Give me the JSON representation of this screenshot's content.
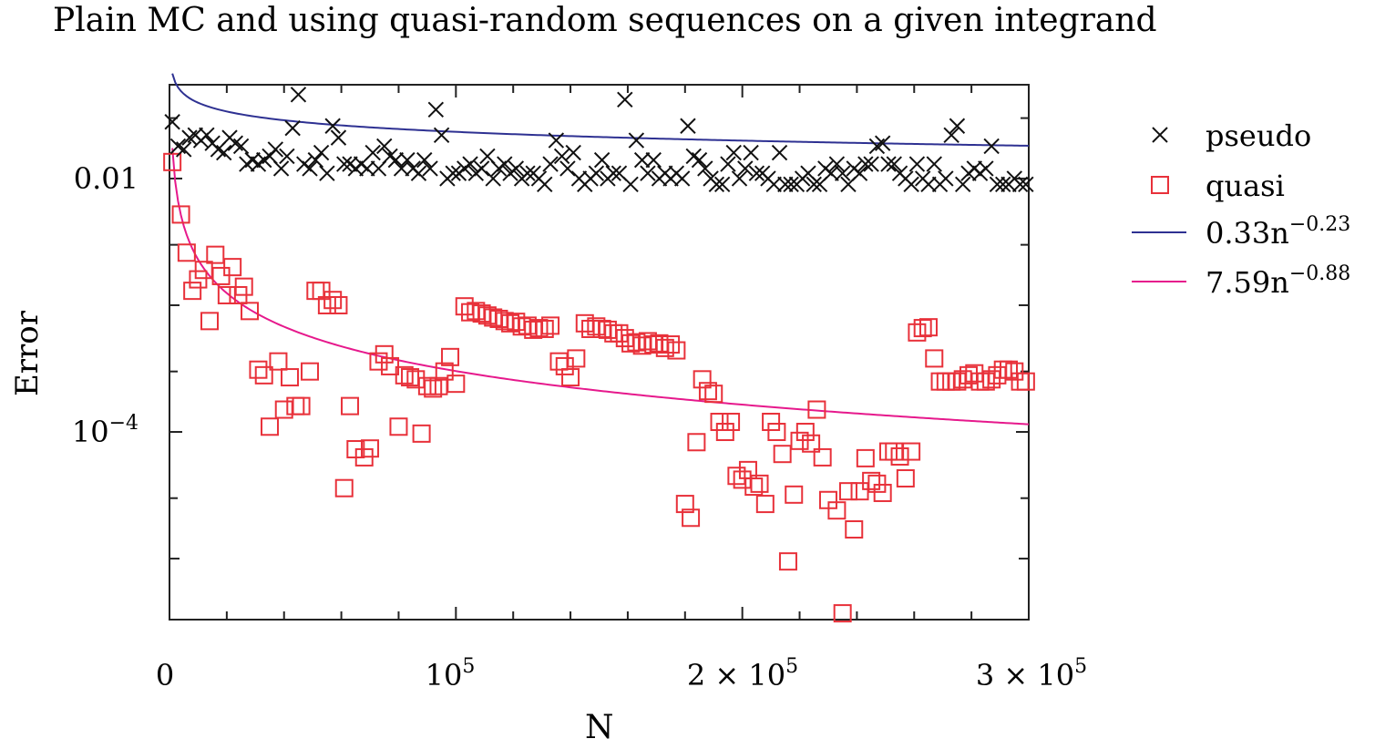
{
  "chart_data": {
    "type": "scatter",
    "title": "Plain MC and using quasi-random sequences on a given integrand",
    "xlabel": "N",
    "ylabel": "Error",
    "x_scale": "linear",
    "y_scale": "log",
    "xlim": [
      0,
      300000
    ],
    "ylim": [
      3.3e-06,
      0.055
    ],
    "x_ticks": [
      {
        "value": 0,
        "label": "0"
      },
      {
        "value": 100000,
        "label": "10^5"
      },
      {
        "value": 200000,
        "label": "2 × 10^5"
      },
      {
        "value": 300000,
        "label": "3 × 10^5"
      }
    ],
    "y_ticks": [
      {
        "value": 0.01,
        "label": "0.01"
      },
      {
        "value": 0.0001,
        "label": "10^−4"
      }
    ],
    "legend_position": "right",
    "legend": [
      {
        "label": "pseudo",
        "marker": "x",
        "color": "#111111"
      },
      {
        "label": "quasi",
        "marker": "square",
        "color": "#e8313a"
      },
      {
        "label": "0.33n^−0.23",
        "line": true,
        "color": "#2e3192"
      },
      {
        "label": "7.59n^−0.88",
        "line": true,
        "color": "#e6198c"
      }
    ],
    "series": [
      {
        "name": "pseudo",
        "marker": "x",
        "color": "#111111",
        "x": [
          1000,
          3000,
          5000,
          7000,
          9000,
          11000,
          13000,
          15000,
          17000,
          19000,
          21000,
          23000,
          25000,
          27000,
          29000,
          31000,
          33000,
          35000,
          37000,
          39000,
          41000,
          43000,
          45000,
          47000,
          49000,
          51000,
          53000,
          55000,
          57000,
          59000,
          61000,
          63000,
          65000,
          67000,
          69000,
          71000,
          73000,
          75000,
          77000,
          79000,
          81000,
          83000,
          85000,
          87000,
          89000,
          91000,
          93000,
          95000,
          97000,
          99000,
          101000,
          103000,
          105000,
          107000,
          109000,
          111000,
          113000,
          115000,
          117000,
          119000,
          121000,
          123000,
          125000,
          127000,
          129000,
          131000,
          133000,
          135000,
          137000,
          139000,
          141000,
          143000,
          145000,
          147000,
          149000,
          151000,
          153000,
          155000,
          157000,
          159000,
          161000,
          163000,
          165000,
          167000,
          169000,
          171000,
          173000,
          175000,
          177000,
          179000,
          181000,
          183000,
          185000,
          187000,
          189000,
          191000,
          193000,
          195000,
          197000,
          199000,
          201000,
          203000,
          205000,
          207000,
          209000,
          211000,
          213000,
          215000,
          217000,
          219000,
          221000,
          223000,
          225000,
          227000,
          229000,
          231000,
          233000,
          235000,
          237000,
          239000,
          241000,
          243000,
          245000,
          247000,
          249000,
          251000,
          253000,
          255000,
          257000,
          259000,
          261000,
          263000,
          265000,
          267000,
          269000,
          271000,
          273000,
          275000,
          277000,
          279000,
          281000,
          283000,
          285000,
          287000,
          289000,
          291000,
          293000,
          295000,
          297000,
          299000
        ],
        "y": [
          0.028,
          0.018,
          0.017,
          0.021,
          0.022,
          0.02,
          0.022,
          0.019,
          0.017,
          0.016,
          0.021,
          0.019,
          0.018,
          0.013,
          0.014,
          0.013,
          0.014,
          0.015,
          0.017,
          0.012,
          0.015,
          0.025,
          0.046,
          0.013,
          0.012,
          0.014,
          0.016,
          0.011,
          0.026,
          0.021,
          0.013,
          0.013,
          0.012,
          0.013,
          0.012,
          0.016,
          0.012,
          0.018,
          0.015,
          0.014,
          0.012,
          0.014,
          0.012,
          0.011,
          0.014,
          0.012,
          0.035,
          0.022,
          0.01,
          0.011,
          0.011,
          0.012,
          0.013,
          0.011,
          0.012,
          0.015,
          0.01,
          0.012,
          0.013,
          0.011,
          0.012,
          0.01,
          0.011,
          0.011,
          0.01,
          0.009,
          0.013,
          0.02,
          0.015,
          0.012,
          0.016,
          0.01,
          0.009,
          0.01,
          0.011,
          0.014,
          0.01,
          0.011,
          0.011,
          0.042,
          0.009,
          0.02,
          0.014,
          0.011,
          0.014,
          0.01,
          0.011,
          0.01,
          0.011,
          0.01,
          0.026,
          0.015,
          0.014,
          0.012,
          0.01,
          0.009,
          0.009,
          0.013,
          0.016,
          0.01,
          0.012,
          0.016,
          0.011,
          0.011,
          0.01,
          0.009,
          0.016,
          0.009,
          0.009,
          0.009,
          0.01,
          0.011,
          0.009,
          0.009,
          0.012,
          0.011,
          0.013,
          0.011,
          0.009,
          0.012,
          0.011,
          0.013,
          0.013,
          0.018,
          0.019,
          0.013,
          0.013,
          0.011,
          0.01,
          0.009,
          0.013,
          0.01,
          0.009,
          0.013,
          0.009,
          0.01,
          0.022,
          0.026,
          0.009,
          0.011,
          0.012,
          0.011,
          0.012,
          0.018,
          0.009,
          0.009,
          0.009,
          0.01,
          0.009,
          0.009
        ]
      },
      {
        "name": "quasi",
        "marker": "square",
        "color": "#e8313a",
        "x": [
          1000,
          4000,
          6000,
          8000,
          10000,
          12000,
          14000,
          16000,
          18000,
          20000,
          22000,
          24000,
          26000,
          28000,
          31000,
          33000,
          35000,
          38000,
          40000,
          42000,
          44000,
          46000,
          49000,
          51000,
          53000,
          55000,
          57000,
          59000,
          61000,
          63000,
          65000,
          68000,
          70000,
          73000,
          75000,
          77000,
          80000,
          82000,
          84000,
          86000,
          88000,
          90000,
          92000,
          94000,
          96000,
          98000,
          100000,
          103000,
          105000,
          107000,
          109000,
          111000,
          113000,
          115000,
          117000,
          119000,
          121000,
          123000,
          125000,
          127000,
          129000,
          131000,
          133000,
          136000,
          138000,
          140000,
          142000,
          145000,
          147000,
          149000,
          151000,
          153000,
          155000,
          157000,
          159000,
          161000,
          163000,
          165000,
          167000,
          169000,
          171000,
          173000,
          175000,
          177000,
          180000,
          182000,
          184000,
          186000,
          188000,
          190000,
          192000,
          194000,
          196000,
          198000,
          200000,
          202000,
          204000,
          206000,
          208000,
          210000,
          212000,
          214000,
          216000,
          218000,
          220000,
          222000,
          224000,
          226000,
          228000,
          230000,
          233000,
          235000,
          237000,
          239000,
          241000,
          243000,
          245000,
          247000,
          249000,
          251000,
          253000,
          255000,
          257000,
          259000,
          261000,
          263000,
          265000,
          267000,
          269000,
          271000,
          273000,
          275000,
          277000,
          279000,
          281000,
          283000,
          285000,
          287000,
          289000,
          291000,
          293000,
          295000,
          297000,
          299000
        ],
        "y": [
          0.0135,
          0.0052,
          0.0026,
          0.0013,
          0.0016,
          0.0019,
          0.00075,
          0.0025,
          0.0017,
          0.0012,
          0.002,
          0.0012,
          0.0014,
          0.0009,
          0.00031,
          0.00028,
          0.00011,
          0.00036,
          0.00015,
          0.00027,
          0.00016,
          0.00016,
          0.0003,
          0.0013,
          0.0013,
          0.001,
          0.0011,
          0.001,
          3.6e-05,
          0.00016,
          7.3e-05,
          6.3e-05,
          7.4e-05,
          0.00036,
          0.00041,
          0.00033,
          0.00011,
          0.00028,
          0.00027,
          0.00026,
          9.7e-05,
          0.00023,
          0.00022,
          0.00023,
          0.0003,
          0.00039,
          0.00024,
          0.00098,
          0.00088,
          0.0009,
          0.00086,
          0.00083,
          0.0008,
          0.00078,
          0.00075,
          0.00072,
          0.00074,
          0.00068,
          0.00069,
          0.00064,
          0.00066,
          0.00065,
          0.00069,
          0.00036,
          0.00033,
          0.00027,
          0.00038,
          0.00072,
          0.00065,
          0.00068,
          0.00065,
          0.00064,
          0.0006,
          0.0006,
          0.00055,
          0.0005,
          0.00051,
          0.00048,
          0.00052,
          0.00049,
          0.0005,
          0.00046,
          0.00049,
          0.00044,
          2.7e-05,
          2.1e-05,
          8.3e-05,
          0.00026,
          0.00021,
          0.0002,
          0.00012,
          0.0001,
          0.00012,
          4.5e-05,
          4.2e-05,
          5e-05,
          3.7e-05,
          3.9e-05,
          2.7e-05,
          0.00012,
          0.0001,
          6.7e-05,
          9.5e-06,
          3.2e-05,
          8.5e-05,
          0.0001,
          8.1e-05,
          0.00015,
          6.3e-05,
          2.9e-05,
          2.4e-05,
          3.7e-06,
          3.4e-05,
          1.7e-05,
          3.4e-05,
          6.2e-05,
          4.1e-05,
          3.9e-05,
          3.3e-05,
          7e-05,
          7e-05,
          6.4e-05,
          4.3e-05,
          7e-05,
          0.00061,
          0.00066,
          0.00067,
          0.00038,
          0.00025,
          0.00025,
          0.00025,
          0.00025,
          0.00026,
          0.00028,
          0.00029,
          0.00025,
          0.00025,
          0.00026,
          0.00028,
          0.00031,
          0.00031,
          0.0003,
          0.00025,
          0.00025
        ]
      },
      {
        "name": "0.33n^−0.23",
        "type": "line",
        "color": "#2e3192",
        "formula": "0.33 * n^-0.23"
      },
      {
        "name": "7.59n^−0.88",
        "type": "line",
        "color": "#e6198c",
        "formula": "7.59 * n^-0.88"
      }
    ]
  }
}
